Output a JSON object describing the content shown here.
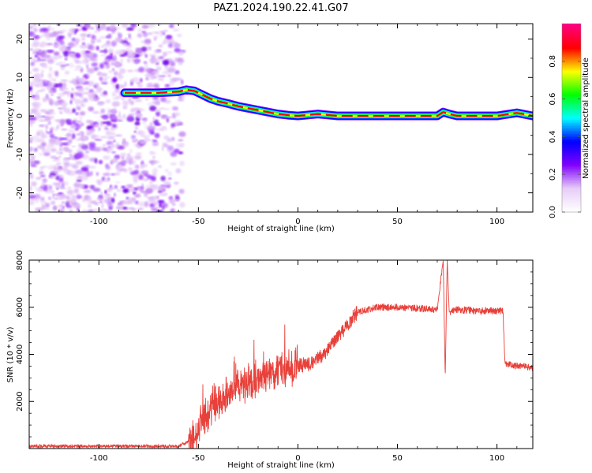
{
  "title": "PAZ1.2024.190.22.41.G07",
  "chart_data": [
    {
      "type": "heatmap",
      "xlabel": "Height of straight line (km)",
      "ylabel": "Frequency (Hz)",
      "xlim": [
        -135,
        118
      ],
      "ylim": [
        -25,
        24
      ],
      "xticks": [
        -100,
        -50,
        0,
        50,
        100
      ],
      "yticks": [
        -20,
        -10,
        0,
        10,
        20
      ],
      "colorbar": {
        "label": "Normalized spectral amplitude",
        "range": [
          0,
          1
        ],
        "ticks": [
          0.0,
          0.2,
          0.4,
          0.6,
          0.8
        ],
        "tick_labels": [
          "0.0",
          "0.2",
          "0.4",
          "0.6",
          "0.8"
        ],
        "colormap": [
          "#ffffff",
          "#e6ccf7",
          "#8000ff",
          "#0000ff",
          "#00ffff",
          "#00ff00",
          "#ffff00",
          "#ff0000",
          "#ff0080"
        ]
      },
      "signal_trace": {
        "x": [
          -87,
          -80,
          -70,
          -60,
          -56,
          -52,
          -48,
          -44,
          -40,
          -35,
          -30,
          -25,
          -20,
          -15,
          -10,
          -5,
          0,
          10,
          20,
          30,
          40,
          50,
          60,
          70,
          73,
          76,
          80,
          90,
          100,
          110,
          118
        ],
        "y": [
          6,
          6,
          6,
          6.3,
          6.8,
          6.5,
          5.5,
          4.5,
          3.8,
          3.2,
          2.5,
          2,
          1.5,
          1,
          0.5,
          0.2,
          0,
          0.5,
          0,
          0,
          0,
          0,
          0,
          0,
          1,
          0.5,
          0,
          0,
          0,
          0.8,
          0
        ]
      }
    },
    {
      "type": "line",
      "xlabel": "Height of straight line (km)",
      "ylabel": "SNR (10 * v/v)",
      "xlim": [
        -135,
        118
      ],
      "ylim": [
        0,
        8000
      ],
      "xticks": [
        -100,
        -50,
        0,
        50,
        100
      ],
      "yticks": [
        2000,
        4000,
        6000,
        8000
      ],
      "color": "#e8403a",
      "series": [
        {
          "x": [
            -135,
            -60,
            -52,
            -50,
            -45,
            -40,
            -35,
            -30,
            -25,
            -20,
            -15,
            -10,
            -5,
            0,
            5,
            10,
            15,
            20,
            25,
            30,
            35,
            40,
            50,
            60,
            70,
            73,
            74,
            75,
            76,
            80,
            90,
            100,
            103,
            104,
            110,
            118
          ],
          "y": [
            100,
            100,
            400,
            900,
            1500,
            2000,
            2300,
            2600,
            2800,
            3000,
            3200,
            3300,
            3400,
            3500,
            3600,
            3800,
            4200,
            4700,
            5300,
            5800,
            5900,
            6000,
            6000,
            5950,
            5900,
            8000,
            3000,
            8000,
            5800,
            5900,
            5850,
            5850,
            5850,
            3600,
            3500,
            3450
          ]
        }
      ]
    }
  ]
}
